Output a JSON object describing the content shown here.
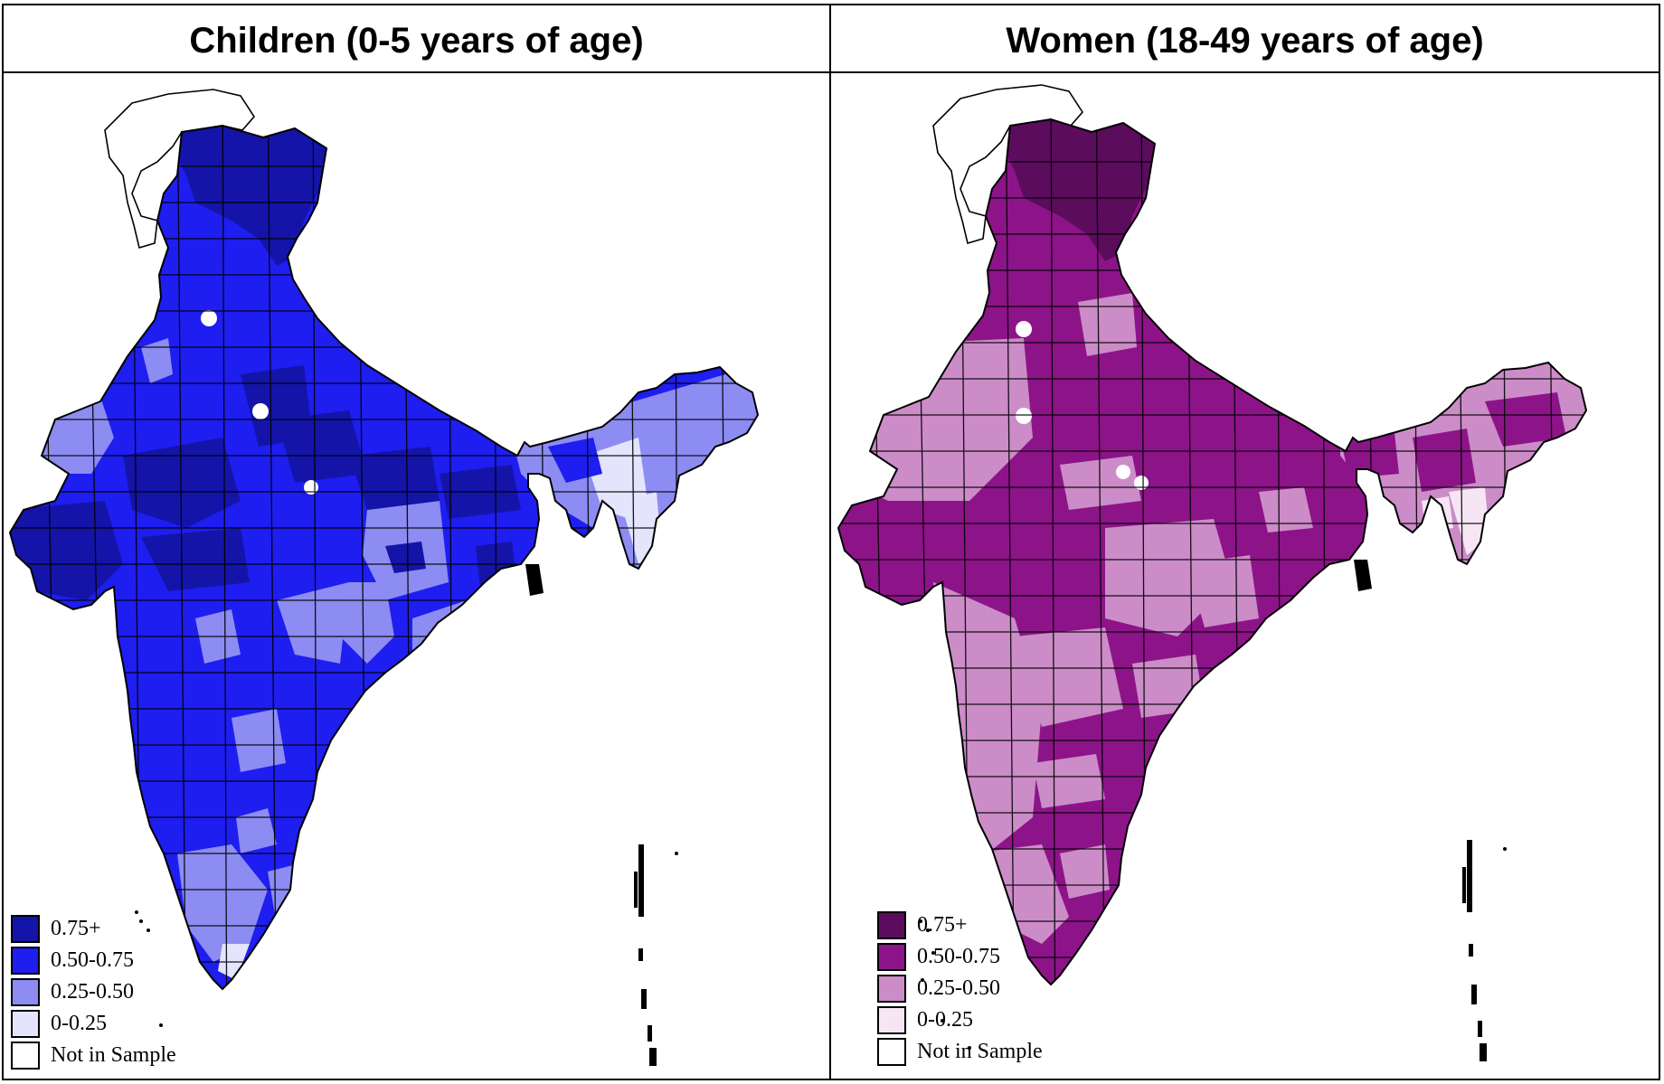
{
  "panels": [
    {
      "title": "Children (0-5 years of age)",
      "colors": {
        "c4": "#1414a8",
        "c3": "#1e1ef0",
        "c2": "#8c8cf2",
        "c1": "#e4e4fc",
        "c0": "#ffffff"
      },
      "legend": [
        "0.75+",
        "0.50-0.75",
        "0.25-0.50",
        "0-0.25",
        "Not in Sample"
      ]
    },
    {
      "title": "Women (18-49 years of age)",
      "colors": {
        "c4": "#5c0c5c",
        "c3": "#8c1488",
        "c2": "#cc8cc8",
        "c1": "#f6e6f4",
        "c0": "#ffffff"
      },
      "legend": [
        "0.75+",
        "0.50-0.75",
        "0.25-0.50",
        "0-0.25",
        "Not in Sample"
      ]
    }
  ]
}
